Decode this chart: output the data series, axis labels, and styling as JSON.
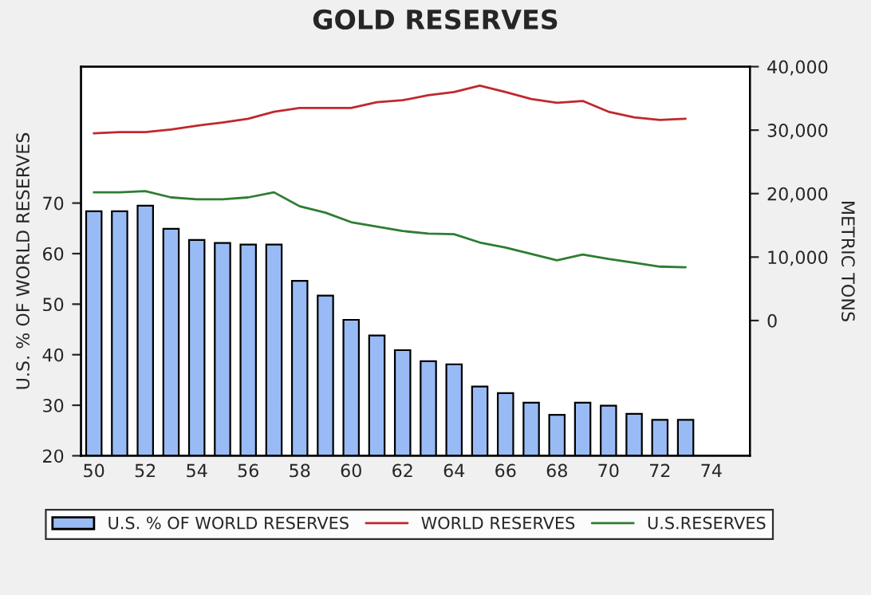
{
  "chart_data": {
    "type": "bar",
    "title": "GOLD RESERVES",
    "ylabel": "U.S. % OF WORLD RESERVES",
    "y2label": "METRIC TONS",
    "categories": [
      "50",
      null,
      "52",
      null,
      "54",
      null,
      "56",
      null,
      "58",
      null,
      "60",
      null,
      "62",
      null,
      "64",
      null,
      "66",
      null,
      "68",
      null,
      "70",
      null,
      "72",
      null,
      "74",
      null
    ],
    "series": [
      {
        "name": "U.S. % OF WORLD RESERVES",
        "color": "#99bbf5",
        "values": [
          68.4,
          68.4,
          69.5,
          64.9,
          62.7,
          62.1,
          61.8,
          61.8,
          54.6,
          51.7,
          46.9,
          43.8,
          40.9,
          38.7,
          38.1,
          33.7,
          32.4,
          30.5,
          28.1,
          30.5,
          29.9,
          28.3,
          27.1,
          27.1,
          null,
          null
        ]
      },
      {
        "name": "WORLD RESERVES",
        "type": "line",
        "axis": "y2",
        "color": "#c0282d",
        "values": [
          29500,
          29700,
          29700,
          30100,
          30700,
          31200,
          31800,
          32900,
          33500,
          33500,
          33500,
          34400,
          34700,
          35500,
          36000,
          37000,
          36000,
          34900,
          34300,
          34600,
          32900,
          32000,
          31600,
          31800,
          null,
          null
        ]
      },
      {
        "name": "U.S.RESERVES",
        "type": "line",
        "axis": "y2",
        "color": "#2e7d32",
        "values": [
          20200,
          20200,
          20400,
          19400,
          19100,
          19100,
          19400,
          20200,
          18000,
          17000,
          15500,
          14800,
          14100,
          13700,
          13600,
          12300,
          11500,
          10500,
          9500,
          10400,
          9700,
          9100,
          8500,
          8400,
          null,
          null
        ]
      }
    ],
    "ylim": [
      20,
      97
    ],
    "yticks": [
      20,
      30,
      40,
      50,
      60,
      70
    ],
    "y2lim": [
      -21300,
      40000
    ],
    "y2ticks": [
      0,
      {
        "value": 10000,
        "label": "10,000"
      },
      {
        "value": 20000,
        "label": "20,000"
      },
      {
        "value": 30000,
        "label": "30,000"
      },
      {
        "value": 40000,
        "label": "40,000"
      }
    ],
    "grid": false,
    "legend": "bottom",
    "marker": "none",
    "line_style": "solid"
  }
}
